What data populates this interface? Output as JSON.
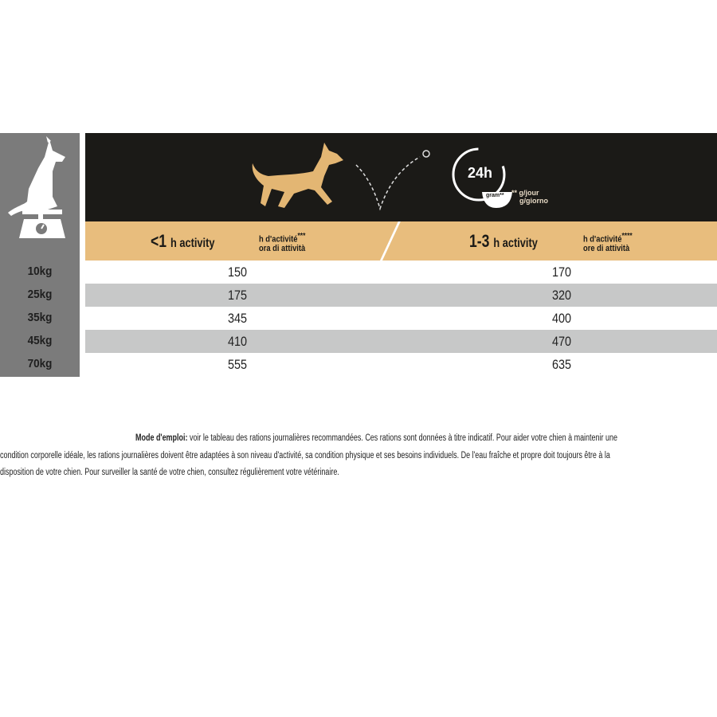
{
  "table": {
    "header_icons": [
      "dog-on-scale-icon",
      "running-dog-icon",
      "check-mark-icon",
      "24h-clock-bowl-icon"
    ],
    "clock_label": "24h",
    "bowl_label": "gram**",
    "unit_label_1": "** g/jour",
    "unit_label_2": "g/giorno",
    "columns": [
      {
        "label_main": "<1",
        "label_rest": "h activity",
        "sub_1": "h d'activité",
        "sub_2": "ora di attività",
        "stars": "***"
      },
      {
        "label_main": "1-3",
        "label_rest": "h activity",
        "sub_1": "h d'activité",
        "sub_2": "ore di attività",
        "stars": "****"
      }
    ],
    "rows": [
      {
        "weight": "10kg",
        "values": [
          "150",
          "170"
        ]
      },
      {
        "weight": "25kg",
        "values": [
          "175",
          "320"
        ]
      },
      {
        "weight": "35kg",
        "values": [
          "345",
          "400"
        ]
      },
      {
        "weight": "45kg",
        "values": [
          "410",
          "470"
        ]
      },
      {
        "weight": "70kg",
        "values": [
          "555",
          "635"
        ]
      }
    ],
    "colors": {
      "header": "#1b1a17",
      "band": "#e8bd7d",
      "dog": "#e3b673",
      "weight_col": "#7b7b7b",
      "alt_row": "#c7c8c8"
    }
  },
  "footer": {
    "bold_label": "Mode d'emploi:",
    "line1": " voir le tableau des rations journalières recommandées. Ces rations sont données à titre indicatif. Pour aider votre chien à maintenir une",
    "line2": "condition corporelle idéale, les rations journalières doivent être adaptées à son niveau d'activité, sa condition physique et ses besoins individuels. De l'eau fraîche et propre doit toujours être à la",
    "line3": "disposition de votre chien. Pour surveiller la santé de votre chien, consultez régulièrement votre vétérinaire."
  }
}
